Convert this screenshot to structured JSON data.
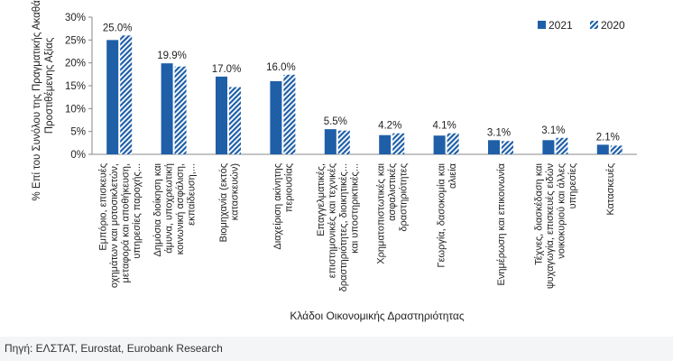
{
  "chart_data": {
    "type": "bar",
    "categories": [
      [
        "Εμπόριο, επισκευές",
        "οχημάτων και μοτοσικλετών,",
        "μεταφορά και αποθήκευση,",
        "υπηρεσίες παροχής..."
      ],
      [
        "Δημόσια διοίκηση και",
        "άμυνα, υποχρεωτική",
        "κοινωνική ασφάλιση,",
        "εκπαίδευση,..."
      ],
      [
        "Βιομηχανία (εκτός",
        "κατασκευών)"
      ],
      [
        "Διαχείριση ακίνητης",
        "περιουσίας"
      ],
      [
        "Επαγγελματικές,",
        "επιστημονικές και τεχνικές",
        "δραστηριότητες, διοικητικές...",
        "και υποστηρικτικές..."
      ],
      [
        "Χρηματοπιστωτικές και",
        "ασφαλιστικές",
        "δραστηριότητες"
      ],
      [
        "Γεωργία, δασοκομία και",
        "αλιεία"
      ],
      [
        "Ενημέρωση και επικοινωνία"
      ],
      [
        "Τέχνες, διασκέδαση και",
        "ψυχαγωγία, επισκευές ειδών",
        "νοικοκυριού και άλλες",
        "υπηρεσίες"
      ],
      [
        "Κατασκευές"
      ]
    ],
    "series": [
      {
        "name": "2021",
        "values": [
          25.0,
          19.9,
          17.0,
          16.0,
          5.5,
          4.2,
          4.1,
          3.1,
          3.1,
          2.1
        ],
        "color": "#1f5fa8",
        "pattern": "solid"
      },
      {
        "name": "2020",
        "values": [
          26.0,
          19.2,
          14.7,
          17.4,
          5.2,
          4.6,
          4.6,
          2.9,
          3.6,
          1.9
        ],
        "color": "#1f5fa8",
        "pattern": "diagonal-stripes"
      }
    ],
    "data_labels": [
      "25.0%",
      "19.9%",
      "17.0%",
      "16.0%",
      "5.5%",
      "4.2%",
      "4.1%",
      "3.1%",
      "3.1%",
      "2.1%"
    ],
    "yticks": [
      "0%",
      "5%",
      "10%",
      "15%",
      "20%",
      "25%",
      "30%"
    ],
    "ylim": [
      0,
      30
    ],
    "ylabel": [
      "% Επί του Συνόλου της Πραγματικής Ακαθάριστης",
      "Προστιθέμενης Αξίας"
    ],
    "xlabel": "Κλάδοι Οικονομικής Δραστηριότητας",
    "legend_position": "top-right",
    "grid": false
  },
  "source_text": "Πηγή: ΕΛΣΤΑΤ, Eurostat, Eurobank Research"
}
